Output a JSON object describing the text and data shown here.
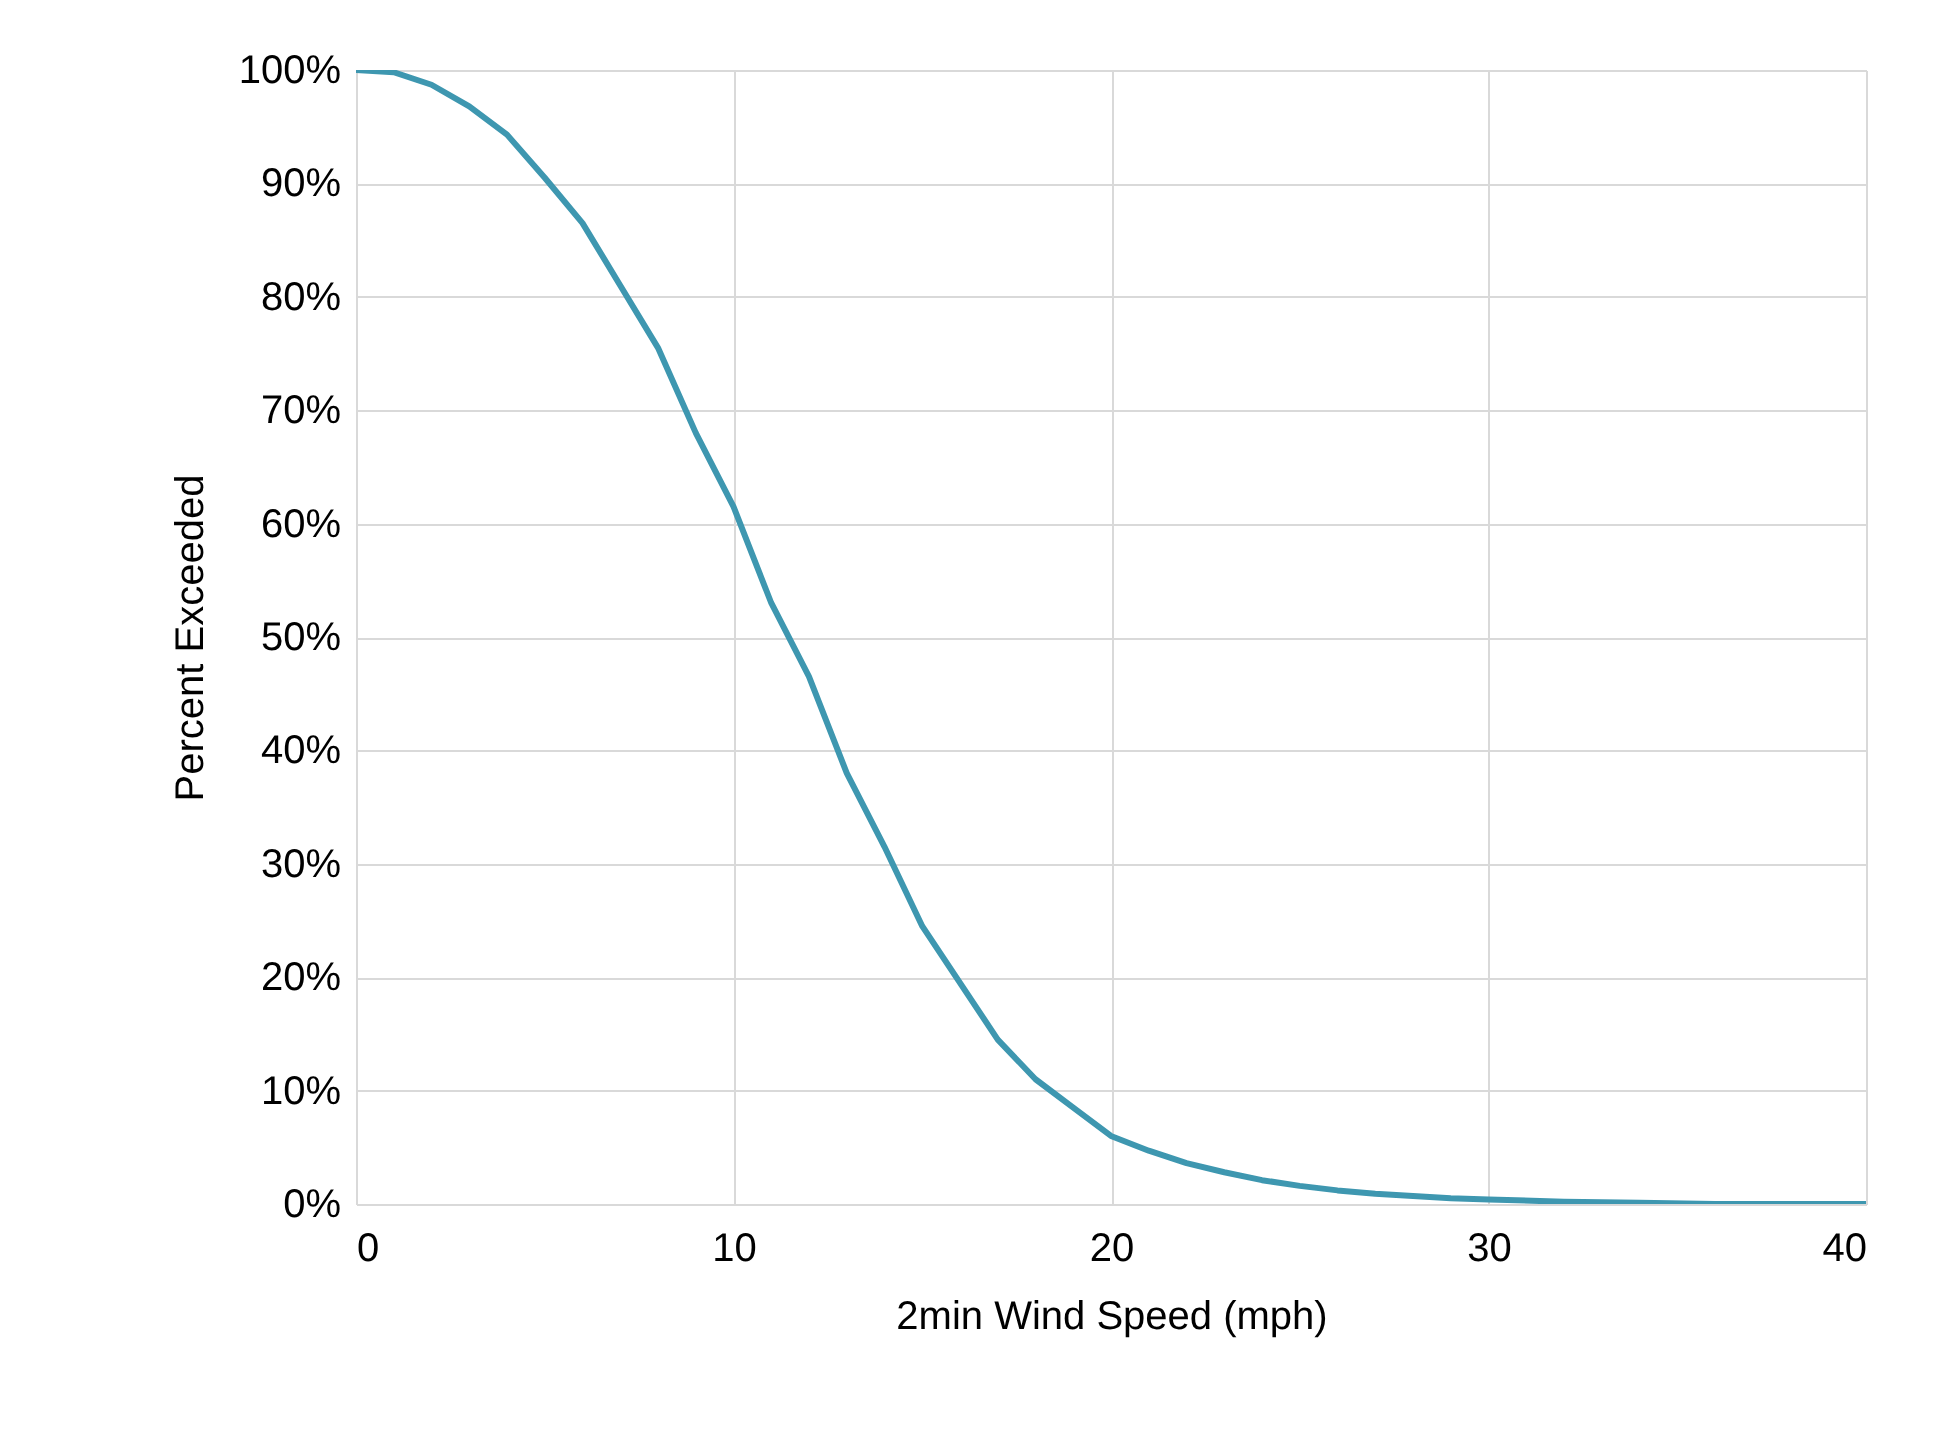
{
  "chart_data": {
    "type": "line",
    "xlabel": "2min Wind Speed (mph)",
    "ylabel": "Percent Exceeded",
    "x": [
      0,
      1,
      2,
      3,
      4,
      5,
      6,
      7,
      8,
      9,
      10,
      11,
      12,
      13,
      14,
      15,
      16,
      17,
      18,
      19,
      20,
      21,
      22,
      23,
      24,
      25,
      26,
      27,
      28,
      29,
      30,
      32,
      34,
      36,
      38,
      40
    ],
    "series": [
      {
        "color": "#3e97b0",
        "values": [
          100,
          99.8,
          98.7,
          96.8,
          94.3,
          90.5,
          86.5,
          81,
          75.5,
          68,
          61.5,
          53,
          46.5,
          38,
          31.5,
          24.5,
          19.5,
          14.5,
          11,
          8.5,
          6,
          4.7,
          3.6,
          2.8,
          2.1,
          1.6,
          1.2,
          0.9,
          0.7,
          0.5,
          0.4,
          0.2,
          0.1,
          0,
          0,
          0
        ]
      }
    ],
    "xlim": [
      0,
      40
    ],
    "xticks": [
      0,
      10,
      20,
      30,
      40
    ],
    "ylim": [
      0,
      100
    ],
    "yticks": [
      {
        "value": 0,
        "label": "0%"
      },
      {
        "value": 10,
        "label": "10%"
      },
      {
        "value": 20,
        "label": "20%"
      },
      {
        "value": 30,
        "label": "30%"
      },
      {
        "value": 40,
        "label": "40%"
      },
      {
        "value": 50,
        "label": "50%"
      },
      {
        "value": 60,
        "label": "60%"
      },
      {
        "value": 70,
        "label": "70%"
      },
      {
        "value": 80,
        "label": "80%"
      },
      {
        "value": 90,
        "label": "90%"
      },
      {
        "value": 100,
        "label": "100%"
      }
    ],
    "grid": true
  }
}
